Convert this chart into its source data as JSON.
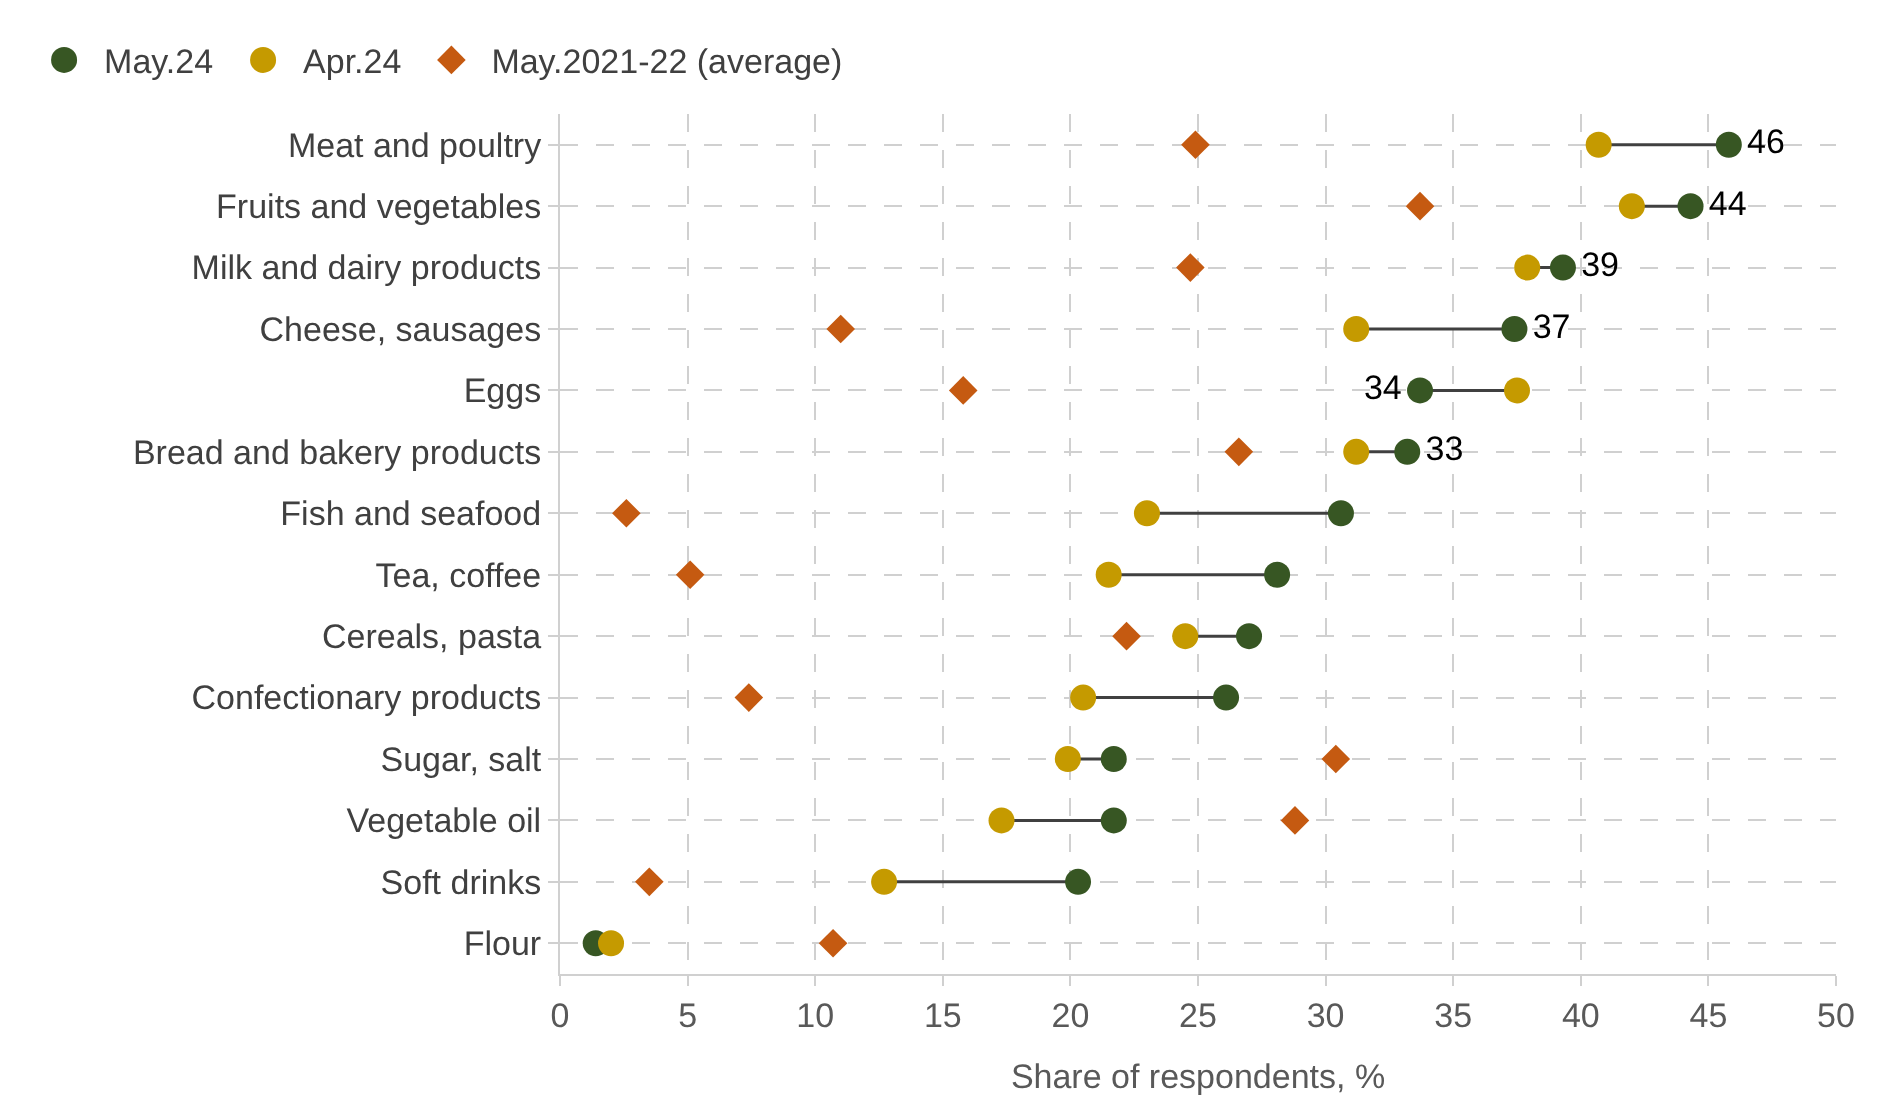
{
  "chart_data": {
    "type": "scatter",
    "orientation": "horizontal",
    "xlabel": "Share of respondents, %",
    "categories": [
      "Meat and poultry",
      "Fruits and vegetables",
      "Milk and dairy products",
      "Cheese, sausages",
      "Eggs",
      "Bread and bakery products",
      "Fish and seafood",
      "Tea, coffee",
      "Cereals, pasta",
      "Confectionary products",
      "Sugar, salt",
      "Vegetable oil",
      "Soft drinks",
      "Flour"
    ],
    "series": [
      {
        "name": "May.24",
        "color": "#375623",
        "marker": "circle",
        "values": [
          45.8,
          44.3,
          39.3,
          37.4,
          33.7,
          33.2,
          30.6,
          28.1,
          27.0,
          26.1,
          21.7,
          21.7,
          20.3,
          1.4
        ],
        "value_labels": [
          "46",
          "44",
          "39",
          "37",
          "34",
          "33",
          null,
          null,
          null,
          null,
          null,
          null,
          null,
          null
        ]
      },
      {
        "name": "Apr.24",
        "color": "#c59a00",
        "marker": "circle",
        "values": [
          40.7,
          42.0,
          37.9,
          31.2,
          37.5,
          31.2,
          23.0,
          21.5,
          24.5,
          20.5,
          19.9,
          17.3,
          12.7,
          2.0
        ]
      },
      {
        "name": "May.2021-22 (average)",
        "color": "#c55a11",
        "marker": "diamond",
        "values": [
          24.9,
          33.7,
          24.7,
          11.0,
          15.8,
          26.6,
          2.6,
          5.1,
          22.2,
          7.4,
          30.4,
          28.8,
          3.5,
          10.7
        ]
      }
    ],
    "xlim": [
      0,
      50
    ],
    "xticks": [
      0,
      5,
      10,
      15,
      20,
      25,
      30,
      35,
      40,
      45,
      50
    ],
    "grid": true,
    "legend": "top left"
  }
}
